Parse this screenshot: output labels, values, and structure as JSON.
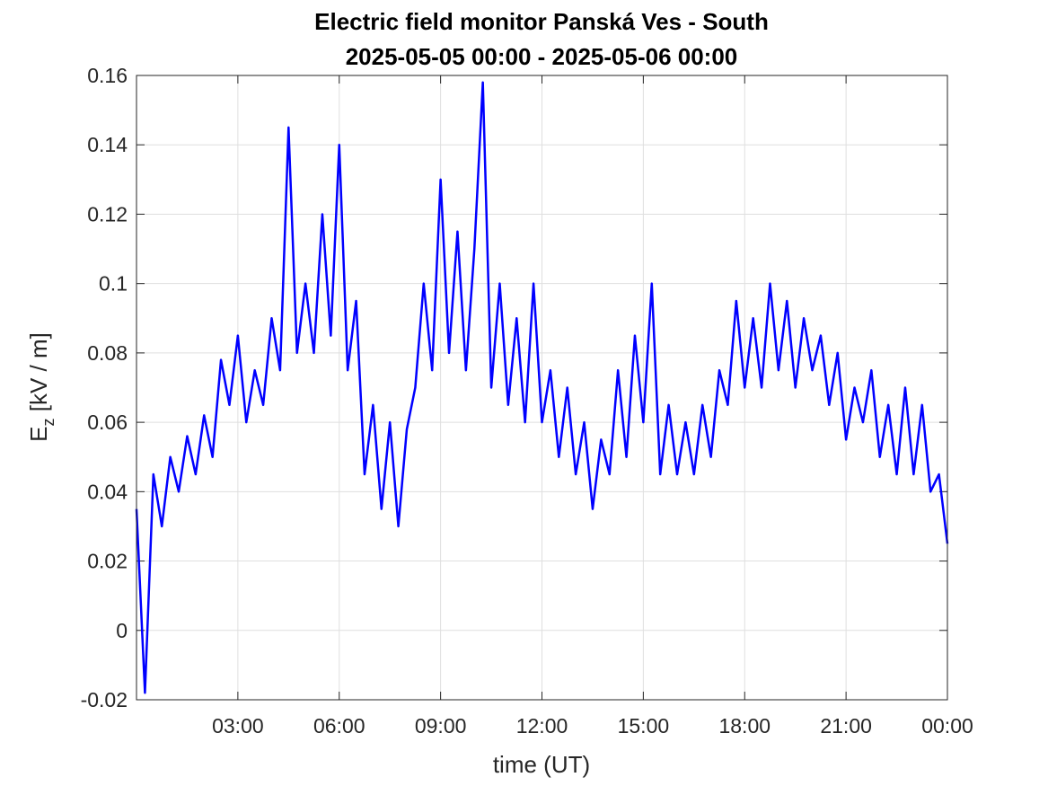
{
  "chart_data": {
    "type": "line",
    "title": "Electric field monitor Panská Ves - South",
    "subtitle": "2025-05-05 00:00 - 2025-05-06 00:00",
    "x_label": "time (UT)",
    "y_label": {
      "text": "E",
      "subscript": "z",
      "suffix": " [kV / m]"
    },
    "color": "#0000ff",
    "grid": true,
    "xlim": [
      0,
      24
    ],
    "xticks": [
      {
        "value": 3,
        "label": "03:00"
      },
      {
        "value": 6,
        "label": "06:00"
      },
      {
        "value": 9,
        "label": "09:00"
      },
      {
        "value": 12,
        "label": "12:00"
      },
      {
        "value": 15,
        "label": "15:00"
      },
      {
        "value": 18,
        "label": "18:00"
      },
      {
        "value": 21,
        "label": "21:00"
      },
      {
        "value": 24,
        "label": "00:00"
      }
    ],
    "ylim": [
      -0.02,
      0.16
    ],
    "yticks": [
      -0.02,
      0,
      0.02,
      0.04,
      0.06,
      0.08,
      0.1,
      0.12,
      0.14,
      0.16
    ],
    "x": [
      0,
      0.25,
      0.5,
      0.75,
      1,
      1.25,
      1.5,
      1.75,
      2,
      2.25,
      2.5,
      2.75,
      3,
      3.25,
      3.5,
      3.75,
      4,
      4.25,
      4.5,
      4.75,
      5,
      5.25,
      5.5,
      5.75,
      6,
      6.25,
      6.5,
      6.75,
      7,
      7.25,
      7.5,
      7.75,
      8,
      8.25,
      8.5,
      8.75,
      9,
      9.25,
      9.5,
      9.75,
      10,
      10.25,
      10.5,
      10.75,
      11,
      11.25,
      11.5,
      11.75,
      12,
      12.25,
      12.5,
      12.75,
      13,
      13.25,
      13.5,
      13.75,
      14,
      14.25,
      14.5,
      14.75,
      15,
      15.25,
      15.5,
      15.75,
      16,
      16.25,
      16.5,
      16.75,
      17,
      17.25,
      17.5,
      17.75,
      18,
      18.25,
      18.5,
      18.75,
      19,
      19.25,
      19.5,
      19.75,
      20,
      20.25,
      20.5,
      20.75,
      21,
      21.25,
      21.5,
      21.75,
      22,
      22.25,
      22.5,
      22.75,
      23,
      23.25,
      23.5,
      23.75,
      24
    ],
    "values": [
      0.035,
      -0.018,
      0.045,
      0.03,
      0.05,
      0.04,
      0.056,
      0.045,
      0.062,
      0.05,
      0.078,
      0.065,
      0.085,
      0.06,
      0.075,
      0.065,
      0.09,
      0.075,
      0.145,
      0.08,
      0.1,
      0.08,
      0.12,
      0.085,
      0.14,
      0.075,
      0.095,
      0.045,
      0.065,
      0.035,
      0.06,
      0.03,
      0.058,
      0.07,
      0.1,
      0.075,
      0.13,
      0.08,
      0.115,
      0.075,
      0.11,
      0.158,
      0.07,
      0.1,
      0.065,
      0.09,
      0.06,
      0.1,
      0.06,
      0.075,
      0.05,
      0.07,
      0.045,
      0.06,
      0.035,
      0.055,
      0.045,
      0.075,
      0.05,
      0.085,
      0.06,
      0.1,
      0.045,
      0.065,
      0.045,
      0.06,
      0.045,
      0.065,
      0.05,
      0.075,
      0.065,
      0.095,
      0.07,
      0.09,
      0.07,
      0.1,
      0.075,
      0.095,
      0.07,
      0.09,
      0.075,
      0.085,
      0.065,
      0.08,
      0.055,
      0.07,
      0.06,
      0.075,
      0.05,
      0.065,
      0.045,
      0.07,
      0.045,
      0.065,
      0.04,
      0.045,
      0.025
    ]
  }
}
